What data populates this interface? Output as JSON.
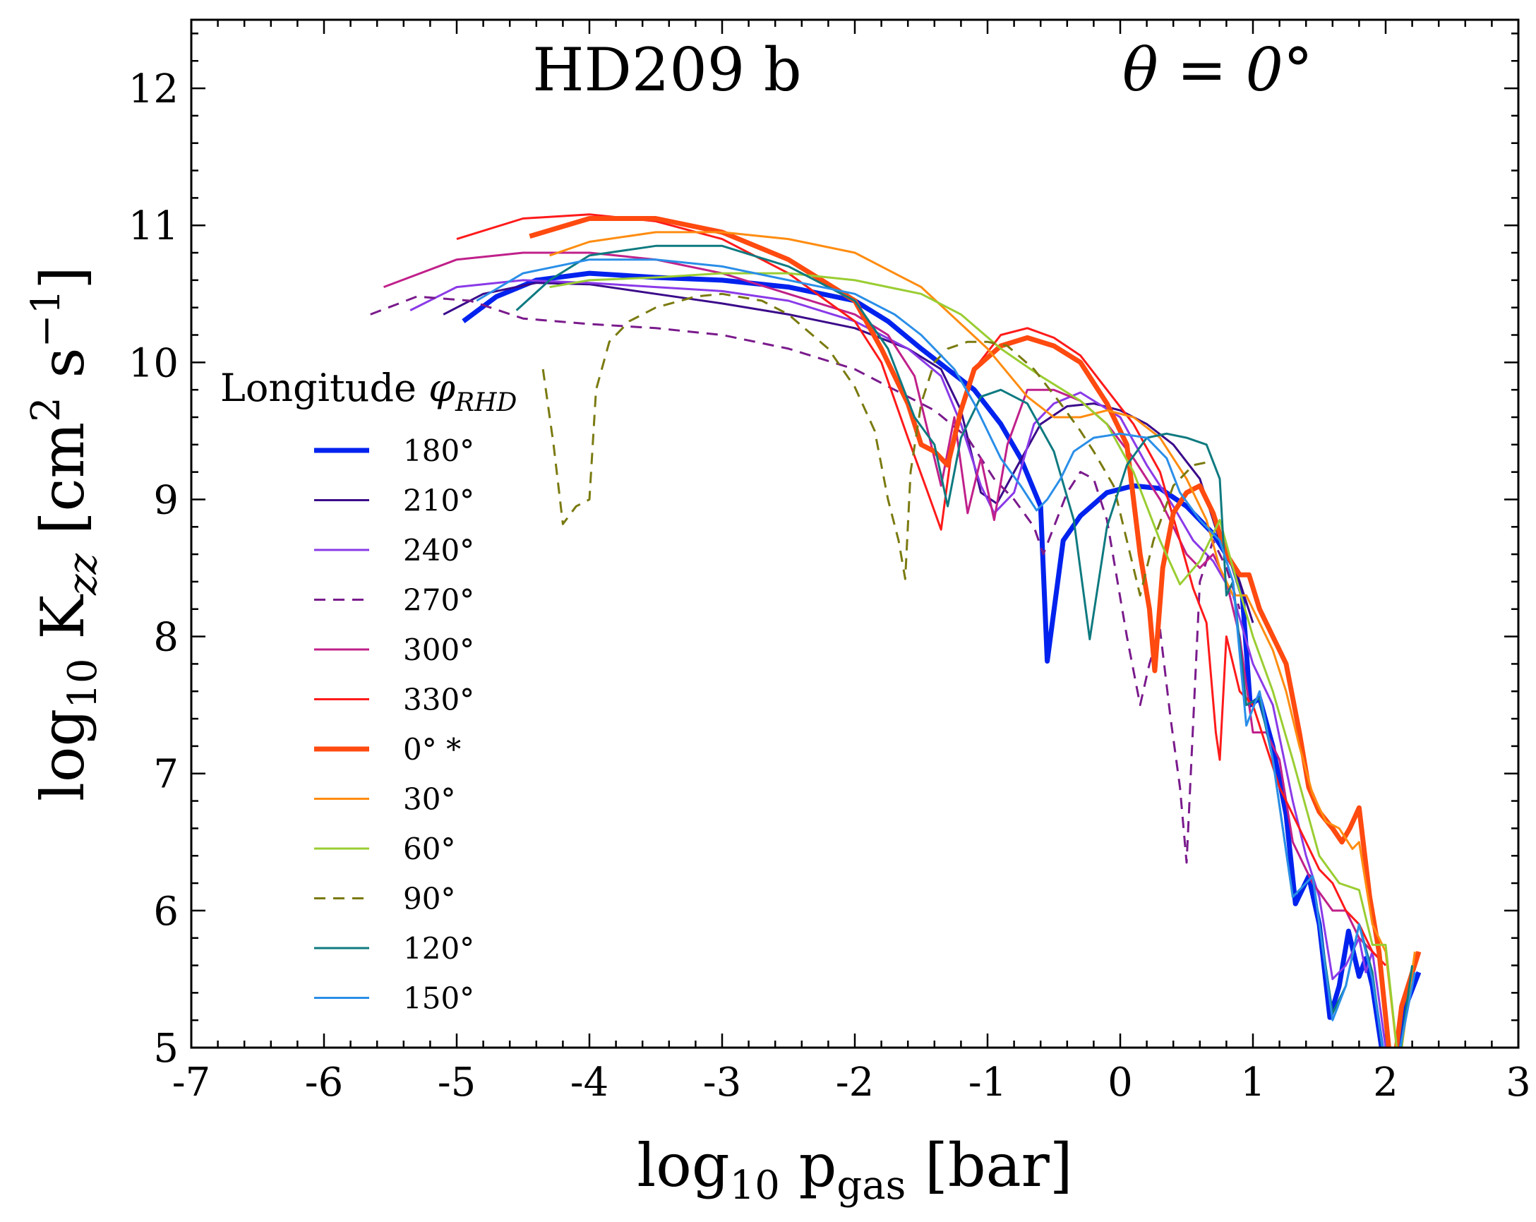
{
  "chart_data": {
    "type": "line",
    "title_left": "HD209 b",
    "title_right": "θ = 0°",
    "xlabel": {
      "main": "log",
      "sub": "10",
      "rest": " p",
      "sub2": "gas",
      "unit": " [bar]"
    },
    "ylabel": {
      "main": "log",
      "sub": "10",
      "k": " K",
      "ksub": "zz",
      "unit_open": " [cm",
      "sup1": "2",
      "unit_mid": " s",
      "sup2": "−1",
      "unit_close": "]"
    },
    "xlim": [
      -7,
      3
    ],
    "ylim": [
      5,
      12.5
    ],
    "xticks": [
      -7,
      -6,
      -5,
      -4,
      -3,
      -2,
      -1,
      0,
      1,
      2,
      3
    ],
    "xtick_labels": [
      "-7",
      "-6",
      "-5",
      "-4",
      "-3",
      "-2",
      "-1",
      "0",
      "1",
      "2",
      "3"
    ],
    "yticks": [
      5,
      6,
      7,
      8,
      9,
      10,
      11,
      12
    ],
    "ytick_labels": [
      "5",
      "6",
      "7",
      "8",
      "9",
      "10",
      "11",
      "12"
    ],
    "legend": {
      "title_main": "Longitude ",
      "title_phi": "φ",
      "title_sub": "RHD",
      "placement": "left-center"
    },
    "series": [
      {
        "name": "180°",
        "color": "#0022ee",
        "width": 7,
        "dash": false,
        "x": [
          -4.95,
          -4.7,
          -4.4,
          -4,
          -3.5,
          -3,
          -2.5,
          -2,
          -1.75,
          -1.5,
          -1.3,
          -1.1,
          -0.9,
          -0.75,
          -0.6,
          -0.55,
          -0.43,
          -0.3,
          -0.1,
          0.1,
          0.3,
          0.5,
          0.7,
          0.85,
          0.92,
          0.98,
          1.05,
          1.15,
          1.25,
          1.32,
          1.42,
          1.5,
          1.58,
          1.65,
          1.72,
          1.8,
          1.85,
          1.9,
          2,
          2.07,
          2.15,
          2.25
        ],
        "y": [
          10.3,
          10.48,
          10.6,
          10.65,
          10.62,
          10.6,
          10.55,
          10.45,
          10.3,
          10.1,
          9.95,
          9.8,
          9.55,
          9.3,
          8.95,
          7.82,
          8.7,
          8.88,
          9.05,
          9.1,
          9.08,
          8.95,
          8.75,
          8.52,
          8.3,
          7.5,
          7.55,
          7.2,
          6.7,
          6.05,
          6.25,
          5.9,
          5.22,
          5.45,
          5.85,
          5.52,
          5.65,
          5.45,
          4.8,
          4.9,
          5.3,
          5.55
        ]
      },
      {
        "name": "210°",
        "color": "#3a0a8a",
        "width": 3,
        "dash": false,
        "x": [
          -5.1,
          -4.8,
          -4.4,
          -4,
          -3.5,
          -3,
          -2.5,
          -2,
          -1.6,
          -1.35,
          -1.2,
          -1.05,
          -0.93,
          -0.8,
          -0.6,
          -0.4,
          -0.2,
          0,
          0.2,
          0.4,
          0.6,
          0.75,
          0.9,
          1
        ],
        "y": [
          10.35,
          10.5,
          10.58,
          10.57,
          10.5,
          10.43,
          10.35,
          10.25,
          10.1,
          9.95,
          9.65,
          9.05,
          8.97,
          9.2,
          9.55,
          9.68,
          9.7,
          9.65,
          9.55,
          9.4,
          9.15,
          8.7,
          8.4,
          8.1
        ]
      },
      {
        "name": "240°",
        "color": "#8a3ae8",
        "width": 3,
        "dash": false,
        "x": [
          -5.35,
          -5,
          -4.5,
          -4,
          -3.5,
          -3,
          -2.5,
          -2,
          -1.6,
          -1.35,
          -1.2,
          -1.05,
          -0.95,
          -0.8,
          -0.65,
          -0.5,
          -0.3,
          0,
          0.2,
          0.4,
          0.55,
          0.7,
          0.85,
          1,
          1.15,
          1.3,
          1.4,
          1.5,
          1.6,
          1.7,
          1.8,
          1.85,
          1.9,
          2
        ],
        "y": [
          10.38,
          10.55,
          10.6,
          10.58,
          10.55,
          10.52,
          10.45,
          10.3,
          10.1,
          9.9,
          9.55,
          9.1,
          8.9,
          9.05,
          9.55,
          9.7,
          9.78,
          9.6,
          9.25,
          8.95,
          8.7,
          8.55,
          8.3,
          7.8,
          7.5,
          6.8,
          6.4,
          6.1,
          5.5,
          5.6,
          5.8,
          5.55,
          5.7,
          5.0
        ]
      },
      {
        "name": "270°",
        "color": "#7a1a8c",
        "width": 3,
        "dash": true,
        "x": [
          -5.65,
          -5.3,
          -4.9,
          -4.5,
          -4,
          -3.5,
          -3,
          -2.5,
          -2,
          -1.7,
          -1.4,
          -1.15,
          -0.95,
          -0.8,
          -0.65,
          -0.58,
          -0.5,
          -0.4,
          -0.3,
          -0.2,
          -0.1,
          0.05,
          0.15,
          0.22,
          0.3,
          0.38,
          0.45,
          0.5,
          0.6,
          0.7,
          0.8,
          0.9
        ],
        "y": [
          10.35,
          10.48,
          10.45,
          10.32,
          10.28,
          10.25,
          10.2,
          10.1,
          9.95,
          9.8,
          9.65,
          9.45,
          9.15,
          9.0,
          8.8,
          8.6,
          8.8,
          9.05,
          9.2,
          9.15,
          8.85,
          8.0,
          7.5,
          7.8,
          8.05,
          7.4,
          6.9,
          6.35,
          8.4,
          8.7,
          8.5,
          8.2
        ]
      },
      {
        "name": "300°",
        "color": "#c0208a",
        "width": 3,
        "dash": false,
        "x": [
          -5.55,
          -5,
          -4.5,
          -4,
          -3.5,
          -3,
          -2.5,
          -2,
          -1.75,
          -1.55,
          -1.45,
          -1.35,
          -1.25,
          -1.15,
          -1.05,
          -0.95,
          -0.85,
          -0.7,
          -0.5,
          -0.3,
          -0.1,
          0.1,
          0.3,
          0.5,
          0.6,
          0.7,
          0.8,
          0.9,
          1,
          1.1,
          1.2,
          1.3,
          1.45,
          1.6,
          1.7,
          1.8,
          1.9,
          2
        ],
        "y": [
          10.55,
          10.75,
          10.8,
          10.8,
          10.75,
          10.65,
          10.5,
          10.35,
          10.2,
          9.9,
          9.5,
          9.1,
          9.6,
          8.9,
          9.3,
          8.85,
          9.4,
          9.8,
          9.8,
          9.72,
          9.55,
          9.3,
          9.0,
          8.6,
          8.5,
          8.6,
          8.4,
          8.0,
          7.3,
          7.3,
          7.1,
          6.5,
          6.2,
          6.0,
          6.0,
          5.8,
          5.7,
          5.6
        ]
      },
      {
        "name": "330°",
        "color": "#ff1a1a",
        "width": 3,
        "dash": false,
        "x": [
          -5,
          -4.5,
          -4,
          -3.5,
          -3,
          -2.5,
          -2,
          -1.8,
          -1.6,
          -1.45,
          -1.35,
          -1.25,
          -1.1,
          -0.9,
          -0.7,
          -0.5,
          -0.3,
          -0.1,
          0.1,
          0.3,
          0.45,
          0.55,
          0.65,
          0.72,
          0.75,
          0.8,
          0.9,
          1,
          1.1,
          1.2,
          1.35,
          1.5,
          1.6,
          1.7,
          1.8,
          1.9,
          2
        ],
        "y": [
          10.9,
          11.05,
          11.08,
          11.03,
          10.9,
          10.65,
          10.3,
          10.0,
          9.45,
          9.05,
          8.78,
          9.5,
          9.95,
          10.2,
          10.25,
          10.18,
          10.05,
          9.8,
          9.55,
          9.2,
          8.7,
          8.35,
          8.1,
          7.3,
          7.1,
          8.0,
          7.6,
          7.5,
          7.2,
          6.9,
          6.6,
          6.3,
          6.2,
          6.0,
          5.9,
          5.7,
          5.6
        ]
      },
      {
        "name": "0° *",
        "color": "#ff4a10",
        "width": 7,
        "dash": false,
        "x": [
          -4.45,
          -4,
          -3.5,
          -3,
          -2.5,
          -2,
          -1.8,
          -1.6,
          -1.5,
          -1.4,
          -1.35,
          -1.3,
          -1.2,
          -1.1,
          -0.9,
          -0.7,
          -0.5,
          -0.3,
          -0.1,
          0.05,
          0.15,
          0.22,
          0.26,
          0.32,
          0.4,
          0.5,
          0.6,
          0.7,
          0.8,
          0.9,
          0.97,
          1.05,
          1.15,
          1.25,
          1.35,
          1.42,
          1.5,
          1.6,
          1.67,
          1.73,
          1.8,
          1.88,
          1.95,
          2.05,
          2.12,
          2.25
        ],
        "y": [
          10.92,
          11.05,
          11.05,
          10.95,
          10.75,
          10.45,
          10.1,
          9.7,
          9.4,
          9.35,
          9.3,
          9.25,
          9.65,
          9.95,
          10.12,
          10.18,
          10.12,
          10.0,
          9.7,
          9.4,
          8.6,
          8.2,
          7.75,
          8.5,
          8.9,
          9.05,
          9.1,
          8.9,
          8.6,
          8.45,
          8.45,
          8.2,
          8.0,
          7.8,
          7.3,
          6.9,
          6.72,
          6.6,
          6.5,
          6.6,
          6.75,
          6.1,
          5.7,
          4.75,
          5.3,
          5.7
        ]
      },
      {
        "name": "30°",
        "color": "#ff8c10",
        "width": 3,
        "dash": false,
        "x": [
          -4.3,
          -4,
          -3.5,
          -3,
          -2.5,
          -2,
          -1.5,
          -1,
          -0.7,
          -0.5,
          -0.3,
          -0.1,
          0.1,
          0.3,
          0.5,
          0.65,
          0.75,
          0.85,
          0.95,
          1.05,
          1.15,
          1.25,
          1.35,
          1.45,
          1.55,
          1.65,
          1.75,
          1.8,
          1.9,
          2,
          2.1,
          2.22
        ],
        "y": [
          10.78,
          10.88,
          10.95,
          10.95,
          10.9,
          10.8,
          10.55,
          10.1,
          9.75,
          9.6,
          9.6,
          9.65,
          9.6,
          9.45,
          9.15,
          8.85,
          8.5,
          8.3,
          8.3,
          8.1,
          7.9,
          7.6,
          7.2,
          6.85,
          6.65,
          6.6,
          6.45,
          6.5,
          5.9,
          5.7,
          4.85,
          5.7
        ]
      },
      {
        "name": "60°",
        "color": "#9acd32",
        "width": 3,
        "dash": false,
        "x": [
          -4.3,
          -4,
          -3.5,
          -3,
          -2.5,
          -2,
          -1.5,
          -1.2,
          -0.9,
          -0.6,
          -0.3,
          -0.1,
          0.1,
          0.3,
          0.45,
          0.6,
          0.75,
          0.85,
          1,
          1.15,
          1.3,
          1.5,
          1.65,
          1.8,
          1.9,
          2,
          2.1,
          2.2
        ],
        "y": [
          10.55,
          10.6,
          10.62,
          10.65,
          10.65,
          10.6,
          10.5,
          10.35,
          10.1,
          9.9,
          9.72,
          9.55,
          9.2,
          8.7,
          8.38,
          8.55,
          8.85,
          8.5,
          8.0,
          7.6,
          7.1,
          6.4,
          6.2,
          6.15,
          5.75,
          5.75,
          4.85,
          5.6
        ]
      },
      {
        "name": "90°",
        "color": "#7a7a10",
        "width": 3,
        "dash": true,
        "x": [
          -4.35,
          -4.27,
          -4.2,
          -4.1,
          -4,
          -3.95,
          -3.85,
          -3.7,
          -3.5,
          -3.2,
          -3,
          -2.7,
          -2.5,
          -2.2,
          -2,
          -1.85,
          -1.75,
          -1.67,
          -1.62,
          -1.58,
          -1.5,
          -1.4,
          -1.3,
          -1.15,
          -1,
          -0.85,
          -0.65,
          -0.45,
          -0.3,
          -0.2,
          -0.05,
          0.05,
          0.15,
          0.25,
          0.4,
          0.55,
          0.7
        ],
        "y": [
          9.95,
          9.4,
          8.82,
          8.95,
          9.0,
          9.8,
          10.15,
          10.3,
          10.4,
          10.48,
          10.5,
          10.45,
          10.35,
          10.1,
          9.82,
          9.5,
          9.0,
          8.7,
          8.42,
          9.2,
          9.7,
          10.0,
          10.1,
          10.15,
          10.15,
          10.12,
          9.95,
          9.7,
          9.5,
          9.35,
          9.1,
          8.7,
          8.3,
          8.7,
          9.1,
          9.25,
          9.28
        ]
      },
      {
        "name": "120°",
        "color": "#0e7a80",
        "width": 3,
        "dash": false,
        "x": [
          -4.55,
          -4.3,
          -4,
          -3.5,
          -3,
          -2.5,
          -2,
          -1.75,
          -1.55,
          -1.4,
          -1.3,
          -1.2,
          -1.05,
          -0.9,
          -0.7,
          -0.5,
          -0.35,
          -0.23,
          -0.1,
          0.05,
          0.2,
          0.35,
          0.5,
          0.65,
          0.75,
          0.8,
          0.85,
          0.95,
          1.05,
          1.15,
          1.3,
          1.45,
          1.6,
          1.7,
          1.8,
          1.9,
          2,
          2.1,
          2.2
        ],
        "y": [
          10.38,
          10.6,
          10.78,
          10.85,
          10.85,
          10.7,
          10.45,
          10.1,
          9.6,
          9.4,
          8.95,
          9.45,
          9.75,
          9.8,
          9.7,
          9.35,
          8.85,
          7.98,
          8.8,
          9.25,
          9.45,
          9.48,
          9.45,
          9.4,
          9.15,
          8.3,
          8.4,
          7.5,
          7.55,
          7.1,
          6.1,
          6.25,
          5.25,
          5.45,
          5.9,
          5.55,
          4.8,
          4.9,
          5.6
        ]
      },
      {
        "name": "150°",
        "color": "#2a8ee8",
        "width": 3,
        "dash": false,
        "x": [
          -4.85,
          -4.5,
          -4,
          -3.5,
          -3,
          -2.5,
          -2,
          -1.7,
          -1.5,
          -1.25,
          -1.1,
          -0.9,
          -0.75,
          -0.63,
          -0.55,
          -0.45,
          -0.35,
          -0.2,
          0,
          0.2,
          0.35,
          0.45,
          0.6,
          0.75,
          0.85,
          0.95,
          1.05,
          1.15,
          1.3,
          1.45,
          1.6,
          1.7,
          1.8,
          1.9,
          2,
          2.1,
          2.22
        ],
        "y": [
          10.45,
          10.65,
          10.75,
          10.75,
          10.7,
          10.6,
          10.5,
          10.35,
          10.2,
          9.95,
          9.7,
          9.3,
          9.1,
          8.92,
          9.0,
          9.15,
          9.35,
          9.45,
          9.48,
          9.45,
          9.3,
          9.05,
          8.85,
          8.7,
          8.4,
          7.35,
          7.6,
          7.1,
          6.1,
          6.25,
          5.2,
          5.45,
          5.9,
          5.5,
          4.85,
          4.95,
          5.55
        ]
      }
    ]
  }
}
